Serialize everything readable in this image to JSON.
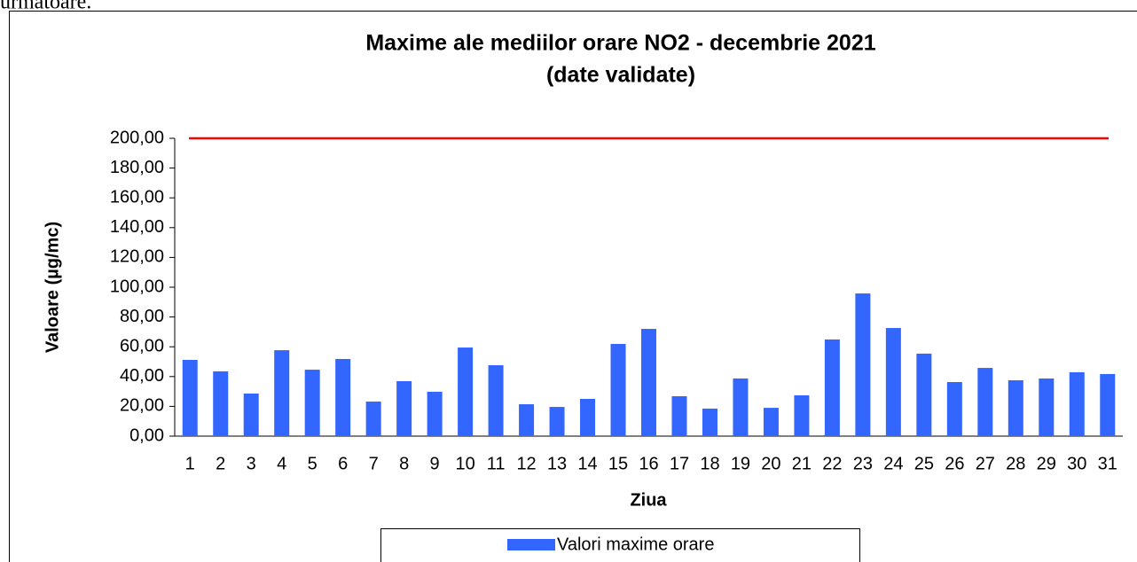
{
  "intro_text": "următoare.",
  "chart_data": {
    "type": "bar",
    "title": "Maxime ale mediilor orare NO2 -  decembrie 2021",
    "subtitle": "(date validate)",
    "x_label": "Ziua",
    "y_label": "Valoare (µg/mc)",
    "categories": [
      "1",
      "2",
      "3",
      "4",
      "5",
      "6",
      "7",
      "8",
      "9",
      "10",
      "11",
      "12",
      "13",
      "14",
      "15",
      "16",
      "17",
      "18",
      "19",
      "20",
      "21",
      "22",
      "23",
      "24",
      "25",
      "26",
      "27",
      "28",
      "29",
      "30",
      "31"
    ],
    "series": [
      {
        "name": "Valori maxime orare",
        "color": "#3366ff",
        "values": [
          51.2,
          43.5,
          28.6,
          57.7,
          44.6,
          51.8,
          23.2,
          36.9,
          29.8,
          59.5,
          47.6,
          21.4,
          19.6,
          25,
          61.9,
          72,
          26.8,
          18.5,
          38.7,
          19,
          27.4,
          64.9,
          95.8,
          72.6,
          55.4,
          36.3,
          45.8,
          37.5,
          38.7,
          42.9,
          41.7
        ]
      }
    ],
    "limit_line": {
      "value": 200,
      "color": "#ff0000"
    },
    "ylim": [
      0,
      200
    ],
    "yticks": [
      {
        "value": 0,
        "label": "0,00"
      },
      {
        "value": 20,
        "label": "20,00"
      },
      {
        "value": 40,
        "label": "40,00"
      },
      {
        "value": 60,
        "label": "60,00"
      },
      {
        "value": 80,
        "label": "80,00"
      },
      {
        "value": 100,
        "label": "100,00"
      },
      {
        "value": 120,
        "label": "120,00"
      },
      {
        "value": 140,
        "label": "140,00"
      },
      {
        "value": 160,
        "label": "160,00"
      },
      {
        "value": 180,
        "label": "180,00"
      },
      {
        "value": 200,
        "label": "200,00"
      }
    ],
    "legend": "bottom"
  }
}
